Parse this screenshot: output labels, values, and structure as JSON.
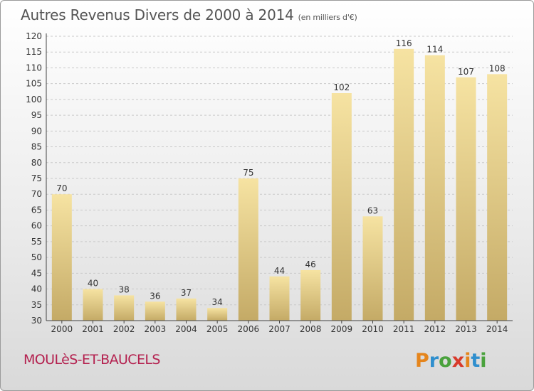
{
  "title": {
    "main": "Autres Revenus Divers de 2000 à 2014",
    "sub": "(en milliers d'€)"
  },
  "commune": "MOULèS-ET-BAUCELS",
  "logo": {
    "text": "Proxiti"
  },
  "colors": {
    "bar_light": "#f6e3a2",
    "bar_dark": "#c4aa66",
    "commune": "#b4214f",
    "axis": "#444444"
  },
  "chart_data": {
    "type": "bar",
    "title": "Autres Revenus Divers de 2000 à 2014",
    "subtitle": "(en milliers d'€)",
    "categories": [
      "2000",
      "2001",
      "2002",
      "2003",
      "2004",
      "2005",
      "2006",
      "2007",
      "2008",
      "2009",
      "2010",
      "2011",
      "2012",
      "2013",
      "2014"
    ],
    "values": [
      70,
      40,
      38,
      36,
      37,
      34,
      75,
      44,
      46,
      102,
      63,
      116,
      114,
      107,
      108
    ],
    "ylim": [
      30,
      120
    ],
    "yticks": [
      30,
      35,
      40,
      45,
      50,
      55,
      60,
      65,
      70,
      75,
      80,
      85,
      90,
      95,
      100,
      105,
      110,
      115,
      120
    ],
    "grid": true,
    "data_labels": true
  }
}
